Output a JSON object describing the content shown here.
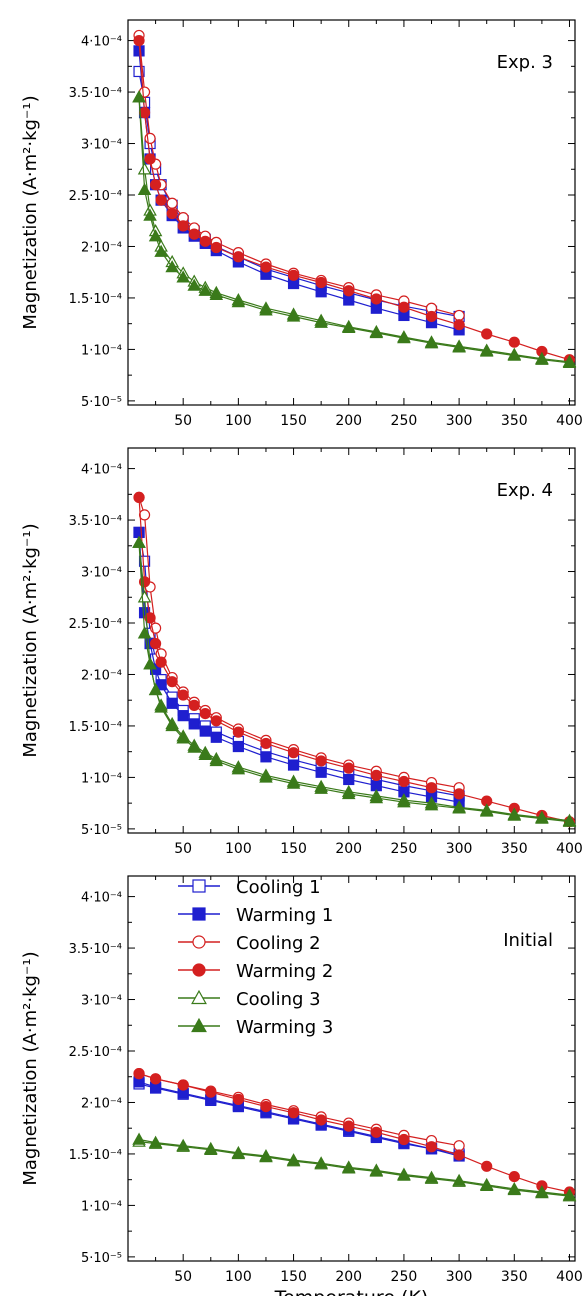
{
  "figure": {
    "legend": {
      "items": [
        {
          "label": "Cooling 1",
          "color": "#1f1fcf",
          "marker": "square-open"
        },
        {
          "label": "Warming 1",
          "color": "#1f1fcf",
          "marker": "square-filled"
        },
        {
          "label": "Cooling 2",
          "color": "#d42020",
          "marker": "circle-open"
        },
        {
          "label": "Warming 2",
          "color": "#d42020",
          "marker": "circle-filled"
        },
        {
          "label": "Cooling 3",
          "color": "#3a7a1a",
          "marker": "triangle-open"
        },
        {
          "label": "Warming 3",
          "color": "#3a7a1a",
          "marker": "triangle-filled"
        }
      ],
      "placement": "top-left of bottom panel"
    }
  },
  "chart_data": [
    {
      "type": "line",
      "panel_label": "Exp. 3",
      "xlabel": "",
      "ylabel": "Magnetization (A·m²·kg⁻¹)",
      "xlim": [
        0,
        405
      ],
      "ylim": [
        4.6e-05,
        0.00042
      ],
      "x_ticks": [
        "50",
        "100",
        "150",
        "200",
        "250",
        "300",
        "350",
        "400"
      ],
      "y_ticks": [
        {
          "value": 5e-05,
          "label": "5·10⁻⁵"
        },
        {
          "value": 0.0001,
          "label": "1·10⁻⁴"
        },
        {
          "value": 0.00015,
          "label": "1.5·10⁻⁴"
        },
        {
          "value": 0.0002,
          "label": "2·10⁻⁴"
        },
        {
          "value": 0.00025,
          "label": "2.5·10⁻⁴"
        },
        {
          "value": 0.0003,
          "label": "3·10⁻⁴"
        },
        {
          "value": 0.00035,
          "label": "3.5·10⁻⁴"
        },
        {
          "value": 0.0004,
          "label": "4·10⁻⁴"
        }
      ],
      "series": [
        {
          "name": "Cooling 1",
          "x": [
            10,
            15,
            20,
            25,
            30,
            40,
            50,
            60,
            70,
            80,
            100,
            125,
            150,
            175,
            200,
            225,
            250,
            275,
            300
          ],
          "y": [
            0.00037,
            0.00034,
            0.0003,
            0.000275,
            0.00026,
            0.00024,
            0.000225,
            0.000215,
            0.000207,
            0.0002,
            0.00019,
            0.000178,
            0.00017,
            0.000162,
            0.000155,
            0.000148,
            0.000142,
            0.000137,
            0.000132
          ]
        },
        {
          "name": "Warming 1",
          "x": [
            10,
            15,
            20,
            25,
            30,
            40,
            50,
            60,
            70,
            80,
            100,
            125,
            150,
            175,
            200,
            225,
            250,
            275,
            300
          ],
          "y": [
            0.00039,
            0.00033,
            0.000285,
            0.00026,
            0.000245,
            0.00023,
            0.000218,
            0.00021,
            0.000203,
            0.000196,
            0.000185,
            0.000173,
            0.000164,
            0.000156,
            0.000148,
            0.00014,
            0.000133,
            0.000126,
            0.000119
          ]
        },
        {
          "name": "Cooling 2",
          "x": [
            10,
            15,
            20,
            25,
            30,
            40,
            50,
            60,
            70,
            80,
            100,
            125,
            150,
            175,
            200,
            225,
            250,
            275,
            300
          ],
          "y": [
            0.000405,
            0.00035,
            0.000305,
            0.00028,
            0.00026,
            0.000242,
            0.000228,
            0.000218,
            0.00021,
            0.000204,
            0.000194,
            0.000183,
            0.000174,
            0.000167,
            0.00016,
            0.000153,
            0.000147,
            0.00014,
            0.000133
          ]
        },
        {
          "name": "Warming 2",
          "x": [
            10,
            15,
            20,
            25,
            30,
            40,
            50,
            60,
            70,
            80,
            100,
            125,
            150,
            175,
            200,
            225,
            250,
            275,
            300,
            325,
            350,
            375,
            400
          ],
          "y": [
            0.0004,
            0.00033,
            0.000285,
            0.00026,
            0.000245,
            0.000232,
            0.00022,
            0.000212,
            0.000205,
            0.000199,
            0.00019,
            0.00018,
            0.000172,
            0.000165,
            0.000157,
            0.000149,
            0.000141,
            0.000132,
            0.000124,
            0.000115,
            0.000107,
            9.8e-05,
            9e-05
          ]
        },
        {
          "name": "Cooling 3",
          "x": [
            10,
            15,
            20,
            25,
            30,
            40,
            50,
            60,
            70,
            80,
            100,
            125,
            150,
            175,
            200,
            225,
            250,
            275,
            300,
            325,
            350,
            375,
            400
          ],
          "y": [
            0.000345,
            0.000275,
            0.000235,
            0.000215,
            0.0002,
            0.000185,
            0.000174,
            0.000166,
            0.00016,
            0.000155,
            0.000148,
            0.00014,
            0.000134,
            0.000128,
            0.000122,
            0.000117,
            0.000112,
            0.000107,
            0.000103,
            9.9e-05,
            9.5e-05,
            9.1e-05,
            8.8e-05
          ]
        },
        {
          "name": "Warming 3",
          "x": [
            10,
            15,
            20,
            25,
            30,
            40,
            50,
            60,
            70,
            80,
            100,
            125,
            150,
            175,
            200,
            225,
            250,
            275,
            300,
            325,
            350,
            375,
            400
          ],
          "y": [
            0.000345,
            0.000255,
            0.00023,
            0.00021,
            0.000195,
            0.00018,
            0.00017,
            0.000162,
            0.000157,
            0.000153,
            0.000146,
            0.000138,
            0.000132,
            0.000126,
            0.000121,
            0.000116,
            0.000111,
            0.000106,
            0.000102,
            9.8e-05,
            9.4e-05,
            9e-05,
            8.7e-05
          ]
        }
      ]
    },
    {
      "type": "line",
      "panel_label": "Exp. 4",
      "xlabel": "",
      "ylabel": "Magnetization (A·m²·kg⁻¹)",
      "xlim": [
        0,
        405
      ],
      "ylim": [
        4.6e-05,
        0.00042
      ],
      "x_ticks": [
        "50",
        "100",
        "150",
        "200",
        "250",
        "300",
        "350",
        "400"
      ],
      "y_ticks": [
        {
          "value": 5e-05,
          "label": "5·10⁻⁵"
        },
        {
          "value": 0.0001,
          "label": "1·10⁻⁴"
        },
        {
          "value": 0.00015,
          "label": "1.5·10⁻⁴"
        },
        {
          "value": 0.0002,
          "label": "2·10⁻⁴"
        },
        {
          "value": 0.00025,
          "label": "2.5·10⁻⁴"
        },
        {
          "value": 0.0003,
          "label": "3·10⁻⁴"
        },
        {
          "value": 0.00035,
          "label": "3.5·10⁻⁴"
        },
        {
          "value": 0.0004,
          "label": "4·10⁻⁴"
        }
      ],
      "series": [
        {
          "name": "Cooling 1",
          "x": [
            10,
            15,
            20,
            25,
            30,
            40,
            50,
            60,
            70,
            80,
            100,
            125,
            150,
            175,
            200,
            225,
            250,
            275,
            300
          ],
          "y": [
            0.000338,
            0.00031,
            0.00024,
            0.000215,
            0.000195,
            0.000178,
            0.000165,
            0.000157,
            0.00015,
            0.000144,
            0.000135,
            0.000125,
            0.000117,
            0.00011,
            0.000104,
            9.8e-05,
            9.2e-05,
            8.7e-05,
            8.2e-05
          ]
        },
        {
          "name": "Warming 1",
          "x": [
            10,
            15,
            20,
            25,
            30,
            40,
            50,
            60,
            70,
            80,
            100,
            125,
            150,
            175,
            200,
            225,
            250,
            275,
            300
          ],
          "y": [
            0.000338,
            0.00026,
            0.00023,
            0.000205,
            0.00019,
            0.000172,
            0.00016,
            0.000152,
            0.000145,
            0.000139,
            0.00013,
            0.00012,
            0.000112,
            0.000105,
            9.8e-05,
            9.2e-05,
            8.6e-05,
            8.1e-05,
            7.6e-05
          ]
        },
        {
          "name": "Cooling 2",
          "x": [
            10,
            15,
            20,
            25,
            30,
            40,
            50,
            60,
            70,
            80,
            100,
            125,
            150,
            175,
            200,
            225,
            250,
            275,
            300
          ],
          "y": [
            0.000372,
            0.000355,
            0.000285,
            0.000245,
            0.00022,
            0.000197,
            0.000183,
            0.000173,
            0.000165,
            0.000158,
            0.000147,
            0.000136,
            0.000127,
            0.000119,
            0.000112,
            0.000106,
            0.0001,
            9.5e-05,
            9e-05
          ]
        },
        {
          "name": "Warming 2",
          "x": [
            10,
            15,
            20,
            25,
            30,
            40,
            50,
            60,
            70,
            80,
            100,
            125,
            150,
            175,
            200,
            225,
            250,
            275,
            300,
            325,
            350,
            375,
            400
          ],
          "y": [
            0.000372,
            0.00029,
            0.000255,
            0.00023,
            0.000212,
            0.000193,
            0.00018,
            0.00017,
            0.000162,
            0.000155,
            0.000144,
            0.000133,
            0.000124,
            0.000116,
            0.000109,
            0.000102,
            9.6e-05,
            9e-05,
            8.4e-05,
            7.7e-05,
            7e-05,
            6.3e-05,
            5.7e-05
          ]
        },
        {
          "name": "Cooling 3",
          "x": [
            10,
            15,
            20,
            25,
            30,
            40,
            50,
            60,
            70,
            80,
            100,
            125,
            150,
            175,
            200,
            225,
            250,
            275,
            300,
            325,
            350,
            375,
            400
          ],
          "y": [
            0.000328,
            0.000275,
            0.00021,
            0.000185,
            0.00017,
            0.000152,
            0.00014,
            0.000131,
            0.000124,
            0.000118,
            0.00011,
            0.000102,
            9.6e-05,
            9.1e-05,
            8.6e-05,
            8.2e-05,
            7.8e-05,
            7.5e-05,
            7.1e-05,
            6.8e-05,
            6.4e-05,
            6.1e-05,
            5.8e-05
          ]
        },
        {
          "name": "Warming 3",
          "x": [
            10,
            15,
            20,
            25,
            30,
            40,
            50,
            60,
            70,
            80,
            100,
            125,
            150,
            175,
            200,
            225,
            250,
            275,
            300,
            325,
            350,
            375,
            400
          ],
          "y": [
            0.000328,
            0.00024,
            0.00021,
            0.000185,
            0.000168,
            0.00015,
            0.000138,
            0.000129,
            0.000122,
            0.000116,
            0.000108,
            0.0001,
            9.4e-05,
            8.9e-05,
            8.4e-05,
            8e-05,
            7.6e-05,
            7.3e-05,
            7e-05,
            6.7e-05,
            6.3e-05,
            6e-05,
            5.7e-05
          ]
        }
      ]
    },
    {
      "type": "line",
      "panel_label": "Initial",
      "xlabel": "Temperature (K)",
      "ylabel": "Magnetization (A·m²·kg⁻¹)",
      "xlim": [
        0,
        405
      ],
      "ylim": [
        4.6e-05,
        0.00042
      ],
      "x_ticks": [
        "50",
        "100",
        "150",
        "200",
        "250",
        "300",
        "350",
        "400"
      ],
      "y_ticks": [
        {
          "value": 5e-05,
          "label": "5·10⁻⁵"
        },
        {
          "value": 0.0001,
          "label": "1·10⁻⁴"
        },
        {
          "value": 0.00015,
          "label": "1.5·10⁻⁴"
        },
        {
          "value": 0.0002,
          "label": "2·10⁻⁴"
        },
        {
          "value": 0.00025,
          "label": "2.5·10⁻⁴"
        },
        {
          "value": 0.0003,
          "label": "3·10⁻⁴"
        },
        {
          "value": 0.00035,
          "label": "3.5·10⁻⁴"
        },
        {
          "value": 0.0004,
          "label": "4·10⁻⁴"
        }
      ],
      "series": [
        {
          "name": "Cooling 1",
          "x": [
            10,
            25,
            50,
            75,
            100,
            125,
            150,
            175,
            200,
            225,
            250,
            275,
            300
          ],
          "y": [
            0.000218,
            0.000214,
            0.000208,
            0.000202,
            0.000196,
            0.00019,
            0.000184,
            0.000178,
            0.000172,
            0.000166,
            0.00016,
            0.000155,
            0.00015
          ]
        },
        {
          "name": "Warming 1",
          "x": [
            10,
            25,
            50,
            75,
            100,
            125,
            150,
            175,
            200,
            225,
            250,
            275,
            300
          ],
          "y": [
            0.00022,
            0.000215,
            0.000209,
            0.000203,
            0.000197,
            0.000191,
            0.000185,
            0.000179,
            0.000173,
            0.000167,
            0.000161,
            0.000155,
            0.000148
          ]
        },
        {
          "name": "Cooling 2",
          "x": [
            10,
            25,
            50,
            75,
            100,
            125,
            150,
            175,
            200,
            225,
            250,
            275,
            300
          ],
          "y": [
            0.000228,
            0.000223,
            0.000217,
            0.000211,
            0.000205,
            0.000198,
            0.000192,
            0.000186,
            0.00018,
            0.000174,
            0.000168,
            0.000163,
            0.000158
          ]
        },
        {
          "name": "Warming 2",
          "x": [
            10,
            25,
            50,
            75,
            100,
            125,
            150,
            175,
            200,
            225,
            250,
            275,
            300,
            325,
            350,
            375,
            400
          ],
          "y": [
            0.000228,
            0.000223,
            0.000217,
            0.00021,
            0.000203,
            0.000196,
            0.00019,
            0.000183,
            0.000177,
            0.000171,
            0.000164,
            0.000157,
            0.000149,
            0.000138,
            0.000128,
            0.000119,
            0.000113
          ]
        },
        {
          "name": "Cooling 3",
          "x": [
            10,
            25,
            50,
            75,
            100,
            125,
            150,
            175,
            200,
            225,
            250,
            275,
            300,
            325,
            350,
            375,
            400
          ],
          "y": [
            0.000162,
            0.00016,
            0.000157,
            0.000154,
            0.00015,
            0.000147,
            0.000143,
            0.00014,
            0.000136,
            0.000133,
            0.000129,
            0.000126,
            0.000123,
            0.000119,
            0.000115,
            0.000112,
            0.000109
          ]
        },
        {
          "name": "Warming 3",
          "x": [
            10,
            25,
            50,
            75,
            100,
            125,
            150,
            175,
            200,
            225,
            250,
            275,
            300,
            325,
            350,
            375,
            400
          ],
          "y": [
            0.000164,
            0.000161,
            0.000158,
            0.000155,
            0.000151,
            0.000148,
            0.000144,
            0.000141,
            0.000137,
            0.000134,
            0.00013,
            0.000127,
            0.000124,
            0.00012,
            0.000116,
            0.000113,
            0.00011
          ]
        }
      ]
    }
  ]
}
